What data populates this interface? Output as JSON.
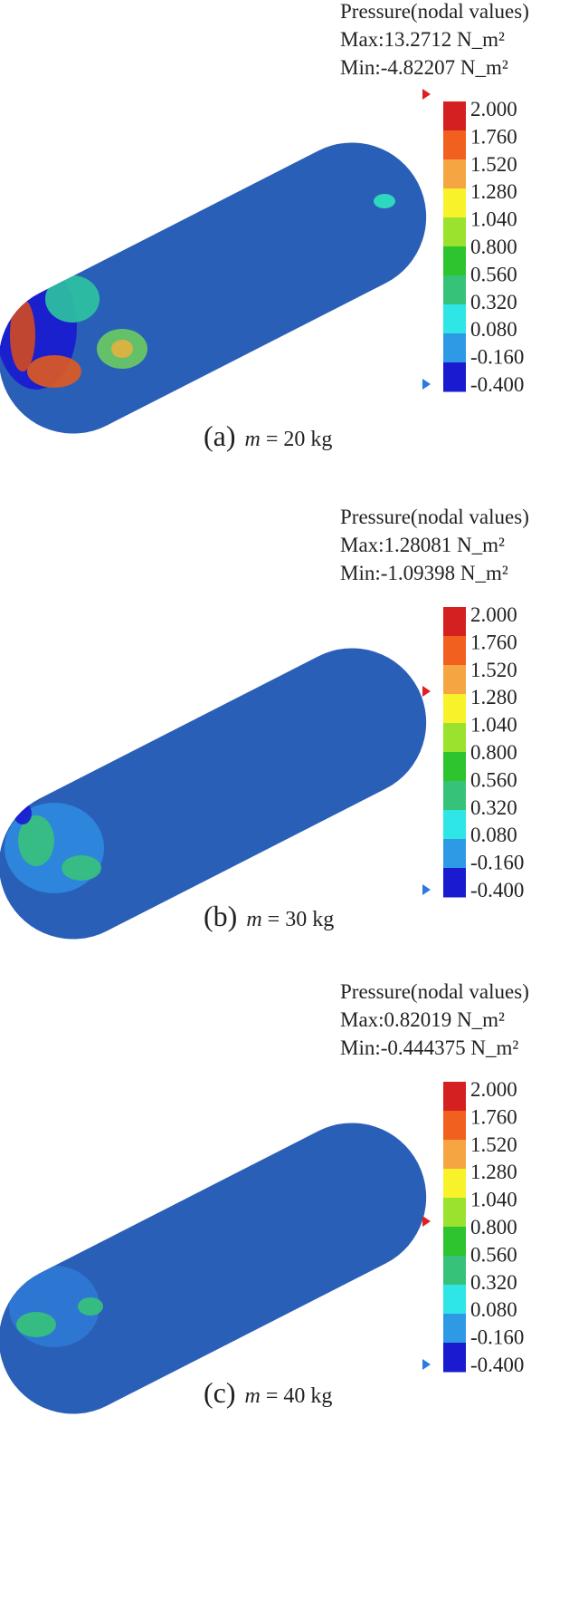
{
  "panels": [
    {
      "legend_title": "Pressure(nodal values)",
      "max_label": "Max:13.2712 N_m²",
      "min_label": "Min:-4.82207 N_m²",
      "scale_labels": [
        "2.000",
        "1.760",
        "1.520",
        "1.280",
        "1.040",
        "0.800",
        "0.560",
        "0.320",
        "0.080",
        "-0.160",
        "-0.400"
      ],
      "caption": {
        "label": "(a)",
        "variable": "m",
        "text": "= 20 kg"
      }
    },
    {
      "legend_title": "Pressure(nodal values)",
      "max_label": "Max:1.28081 N_m²",
      "min_label": "Min:-1.09398 N_m²",
      "scale_labels": [
        "2.000",
        "1.760",
        "1.520",
        "1.280",
        "1.040",
        "0.800",
        "0.560",
        "0.320",
        "0.080",
        "-0.160",
        "-0.400"
      ],
      "caption": {
        "label": "(b)",
        "variable": "m",
        "text": "= 30 kg"
      }
    },
    {
      "legend_title": "Pressure(nodal values)",
      "max_label": "Max:0.82019 N_m²",
      "min_label": "Min:-0.444375 N_m²",
      "scale_labels": [
        "2.000",
        "1.760",
        "1.520",
        "1.280",
        "1.040",
        "0.800",
        "0.560",
        "0.320",
        "0.080",
        "-0.160",
        "-0.400"
      ],
      "caption": {
        "label": "(c)",
        "variable": "m",
        "text": "= 40 kg"
      }
    }
  ]
}
